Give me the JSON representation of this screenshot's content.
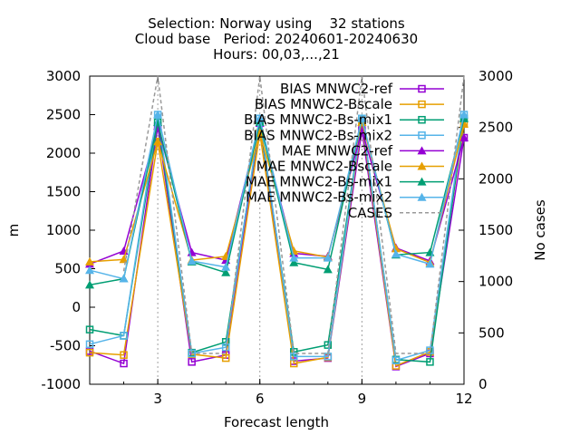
{
  "chart_data": {
    "type": "line",
    "title_lines": [
      "Selection: Norway using    32 stations",
      "Cloud base   Period: 20240601-20240630",
      "Hours: 00,03,...,21"
    ],
    "xlabel": "Forecast length",
    "ylabel": "m",
    "y2label": "No cases",
    "xlim": [
      1,
      12
    ],
    "ylim": [
      -1000,
      3000
    ],
    "y2lim": [
      0,
      3000
    ],
    "x_ticks": [
      "3",
      "6",
      "9",
      "12"
    ],
    "y_ticks": [
      "3000",
      "2500",
      "2000",
      "1500",
      "1000",
      "500",
      "0",
      "-500",
      "-1000"
    ],
    "y2_ticks": [
      "3000",
      "2500",
      "2000",
      "1500",
      "1000",
      "500",
      "0"
    ],
    "legend_position": "top-right",
    "x": [
      1,
      2,
      3,
      4,
      5,
      6,
      7,
      8,
      9,
      10,
      11,
      12
    ],
    "series": [
      {
        "name": "BIAS MNWC2-ref",
        "color": "#9400d3",
        "marker": "square-open",
        "style": "solid",
        "axis": "y",
        "values": [
          -570,
          -730,
          2350,
          -710,
          -620,
          2390,
          -700,
          -660,
          2300,
          -770,
          -600,
          2200
        ]
      },
      {
        "name": "BIAS MNWC2-Bscale",
        "color": "#e69f00",
        "marker": "square-open",
        "style": "solid",
        "axis": "y",
        "values": [
          -590,
          -620,
          2150,
          -610,
          -660,
          2260,
          -730,
          -650,
          2400,
          -760,
          -580,
          2380
        ]
      },
      {
        "name": "BIAS MNWC2-Bs-mix1",
        "color": "#009e73",
        "marker": "square-open",
        "style": "solid",
        "axis": "y",
        "values": [
          -290,
          -370,
          2400,
          -590,
          -450,
          2400,
          -580,
          -490,
          2450,
          -680,
          -710,
          2450
        ]
      },
      {
        "name": "BIAS MNWC2-Bs-mix2",
        "color": "#56b4e9",
        "marker": "square-open",
        "style": "solid",
        "axis": "y",
        "values": [
          -480,
          -370,
          2500,
          -600,
          -520,
          2450,
          -640,
          -640,
          2450,
          -690,
          -560,
          2500
        ]
      },
      {
        "name": "MAE MNWC2-ref",
        "color": "#9400d3",
        "marker": "triangle-filled",
        "style": "solid",
        "axis": "y",
        "values": [
          560,
          730,
          2350,
          710,
          610,
          2390,
          700,
          660,
          2300,
          770,
          600,
          2200
        ]
      },
      {
        "name": "MAE MNWC2-Bscale",
        "color": "#e69f00",
        "marker": "triangle-filled",
        "style": "solid",
        "axis": "y",
        "values": [
          590,
          620,
          2150,
          610,
          660,
          2260,
          730,
          650,
          2400,
          760,
          580,
          2380
        ]
      },
      {
        "name": "MAE MNWC2-Bs-mix1",
        "color": "#009e73",
        "marker": "triangle-filled",
        "style": "solid",
        "axis": "y",
        "values": [
          290,
          370,
          2400,
          590,
          450,
          2400,
          580,
          490,
          2450,
          680,
          710,
          2450
        ]
      },
      {
        "name": "MAE MNWC2-Bs-mix2",
        "color": "#56b4e9",
        "marker": "triangle-filled",
        "style": "solid",
        "axis": "y",
        "values": [
          480,
          370,
          2500,
          600,
          520,
          2450,
          640,
          640,
          2450,
          690,
          560,
          2500
        ]
      },
      {
        "name": "CASES",
        "color": "#999999",
        "marker": "none",
        "style": "dashed",
        "axis": "y2",
        "values": [
          null,
          1100,
          3000,
          300,
          300,
          3000,
          300,
          300,
          3000,
          300,
          300,
          3000
        ]
      }
    ]
  }
}
